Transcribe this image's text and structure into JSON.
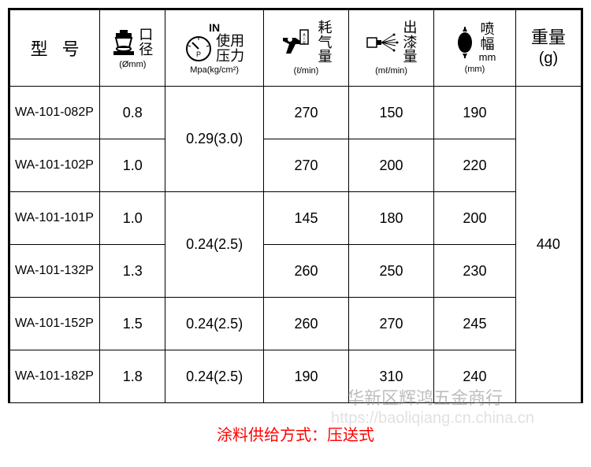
{
  "headers": {
    "model": "型 号",
    "diameter": {
      "label": "口径",
      "unit": "(Ømm)"
    },
    "pressure": {
      "top": "IN",
      "label1": "使用",
      "label2": "压力",
      "unit": "Mpa(kg/cm²)"
    },
    "air": {
      "label1": "耗",
      "label2": "气",
      "label3": "量",
      "unit": "(ℓ/min)"
    },
    "paint": {
      "label1": "出",
      "label2": "漆",
      "label3": "量",
      "unit": "(mℓ/min)"
    },
    "width": {
      "label1": "喷",
      "label2": "幅",
      "unit_right": "mm",
      "unit_bottom": "(mm)"
    },
    "weight": {
      "label": "重量",
      "unit": "(g)"
    }
  },
  "rows": [
    {
      "model": "WA-101-082P",
      "diameter": "0.8",
      "air": "270",
      "paint": "150",
      "width": "190"
    },
    {
      "model": "WA-101-102P",
      "diameter": "1.0",
      "air": "270",
      "paint": "200",
      "width": "220"
    },
    {
      "model": "WA-101-101P",
      "diameter": "1.0",
      "air": "145",
      "paint": "180",
      "width": "200"
    },
    {
      "model": "WA-101-132P",
      "diameter": "1.3",
      "air": "260",
      "paint": "250",
      "width": "230"
    },
    {
      "model": "WA-101-152P",
      "diameter": "1.5",
      "air": "260",
      "paint": "270",
      "width": "245"
    },
    {
      "model": "WA-101-182P",
      "diameter": "1.8",
      "air": "190",
      "paint": "310",
      "width": "240"
    }
  ],
  "pressure_groups": [
    {
      "value": "0.29(3.0)",
      "span": 2
    },
    {
      "value": "0.24(2.5)",
      "span": 2
    },
    {
      "value": "0.24(2.5)",
      "span": 1
    },
    {
      "value": "0.24(2.5)",
      "span": 1
    }
  ],
  "weight_value": "440",
  "footer_note": "涂料供给方式：压送式",
  "watermark1": "华新区辉鸿五金商行",
  "watermark2": "https://baoliqiang.cn.china.cn"
}
